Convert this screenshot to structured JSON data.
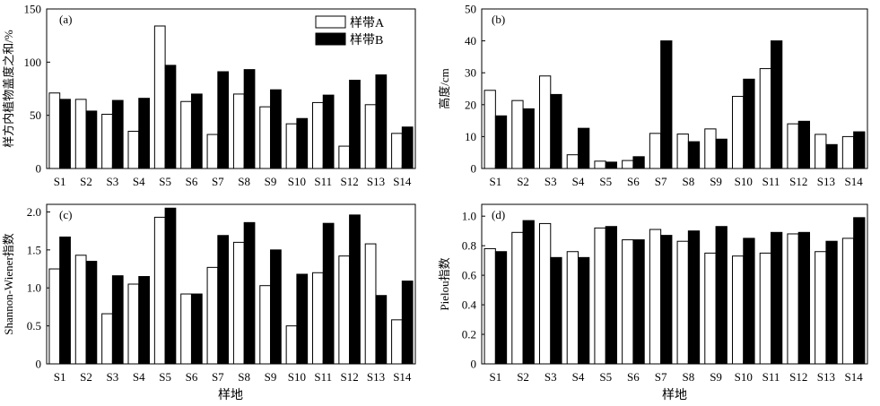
{
  "legend": [
    {
      "label": "样带A",
      "color": "#ffffff"
    },
    {
      "label": "样带B",
      "color": "#000000"
    }
  ],
  "shared_xlabel": "样地",
  "chart_data": [
    {
      "type": "bar",
      "panel": "(a)",
      "categories": [
        "S1",
        "S2",
        "S3",
        "S4",
        "S5",
        "S6",
        "S7",
        "S8",
        "S9",
        "S10",
        "S11",
        "S12",
        "S13",
        "S14"
      ],
      "ylabel": "样方内植物盖度之和/%",
      "ylim": [
        0,
        150
      ],
      "yticks": [
        "0",
        "50",
        "100",
        "150"
      ],
      "series": [
        {
          "name": "样带A",
          "values": [
            71,
            65,
            51,
            35,
            134,
            63,
            32,
            70,
            58,
            42,
            62,
            21,
            60,
            33
          ]
        },
        {
          "name": "样带B",
          "values": [
            65,
            54,
            64,
            66,
            97,
            70,
            91,
            93,
            74,
            47,
            69,
            83,
            88,
            39
          ]
        }
      ]
    },
    {
      "type": "bar",
      "panel": "(b)",
      "categories": [
        "S1",
        "S2",
        "S3",
        "S4",
        "S5",
        "S6",
        "S7",
        "S8",
        "S9",
        "S10",
        "S11",
        "S12",
        "S13",
        "S14"
      ],
      "ylabel": "高度/cm",
      "ylim": [
        0,
        50
      ],
      "yticks": [
        "0",
        "10",
        "20",
        "30",
        "40",
        "50"
      ],
      "series": [
        {
          "name": "样带A",
          "values": [
            24.5,
            21.3,
            29,
            4.3,
            2.3,
            2.5,
            11,
            10.8,
            12.4,
            22.6,
            31.3,
            14,
            10.7,
            10
          ]
        },
        {
          "name": "样带B",
          "values": [
            16.5,
            18.7,
            23.2,
            12.6,
            2,
            3.7,
            40,
            8.4,
            9.2,
            28,
            40,
            14.8,
            7.5,
            11.5
          ]
        }
      ]
    },
    {
      "type": "bar",
      "panel": "(c)",
      "categories": [
        "S1",
        "S2",
        "S3",
        "S4",
        "S5",
        "S6",
        "S7",
        "S8",
        "S9",
        "S10",
        "S11",
        "S12",
        "S13",
        "S14"
      ],
      "ylabel": "Shannon-Wiener指数",
      "ylim": [
        0,
        2.1
      ],
      "yticks": [
        "0",
        "0.5",
        "1.0",
        "1.5",
        "2.0"
      ],
      "series": [
        {
          "name": "样带A",
          "values": [
            1.25,
            1.43,
            0.66,
            1.05,
            1.93,
            0.92,
            1.27,
            1.6,
            1.03,
            0.5,
            1.2,
            1.42,
            1.58,
            0.58
          ]
        },
        {
          "name": "样带B",
          "values": [
            1.67,
            1.35,
            1.16,
            1.15,
            2.05,
            0.92,
            1.69,
            1.86,
            1.5,
            1.18,
            1.85,
            1.96,
            0.9,
            1.09
          ]
        }
      ]
    },
    {
      "type": "bar",
      "panel": "(d)",
      "categories": [
        "S1",
        "S2",
        "S3",
        "S4",
        "S5",
        "S6",
        "S7",
        "S8",
        "S9",
        "S10",
        "S11",
        "S12",
        "S13",
        "S14"
      ],
      "ylabel": "Pielou指数",
      "ylim": [
        0,
        1.08
      ],
      "yticks": [
        "0",
        "0.2",
        "0.4",
        "0.6",
        "0.8",
        "1.0"
      ],
      "series": [
        {
          "name": "样带A",
          "values": [
            0.78,
            0.89,
            0.95,
            0.76,
            0.92,
            0.84,
            0.91,
            0.83,
            0.75,
            0.73,
            0.75,
            0.88,
            0.76,
            0.85
          ]
        },
        {
          "name": "样带B",
          "values": [
            0.76,
            0.97,
            0.72,
            0.72,
            0.93,
            0.84,
            0.87,
            0.9,
            0.93,
            0.85,
            0.89,
            0.89,
            0.83,
            0.99
          ]
        }
      ]
    }
  ]
}
